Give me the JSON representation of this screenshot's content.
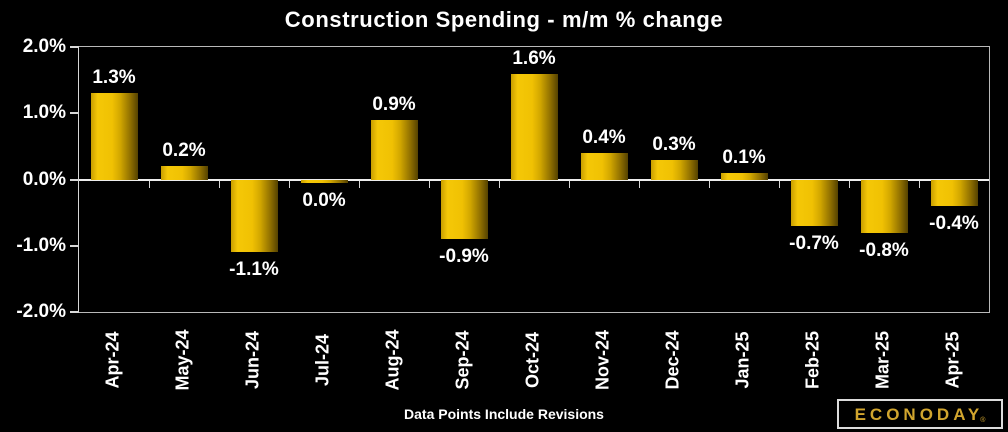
{
  "title": "Construction Spending - m/m % change",
  "footnote": "Data Points Include Revisions",
  "logo": {
    "brand": "ECONODAY",
    "registered_mark": "®"
  },
  "colors": {
    "background": "#000000",
    "text": "#ffffff",
    "axis_border": "#b9b9b9",
    "zero_line": "#ededed",
    "tick": "#d9d9d9",
    "bar_gold_bright": "#f0c103",
    "bar_gold_dark": "#554200",
    "logo_gold": "#d1a52e"
  },
  "chart_data": {
    "type": "bar",
    "title": "Construction Spending - m/m % change",
    "categories": [
      "Apr-24",
      "May-24",
      "Jun-24",
      "Jul-24",
      "Aug-24",
      "Sep-24",
      "Oct-24",
      "Nov-24",
      "Dec-24",
      "Jan-25",
      "Feb-25",
      "Mar-25",
      "Apr-25"
    ],
    "values": [
      1.3,
      0.2,
      -1.1,
      0.0,
      0.9,
      -0.9,
      1.6,
      0.4,
      0.3,
      0.1,
      -0.7,
      -0.8,
      -0.4
    ],
    "data_labels": [
      "1.3%",
      "0.2%",
      "-1.1%",
      "0.0%",
      "0.9%",
      "-0.9%",
      "1.6%",
      "0.4%",
      "0.3%",
      "0.1%",
      "-0.7%",
      "-0.8%",
      "-0.4%"
    ],
    "xlabel": "",
    "ylabel": "",
    "ylim": [
      -2.0,
      2.0
    ],
    "yticks": [
      {
        "value": 2.0,
        "label": "2.0%"
      },
      {
        "value": 1.0,
        "label": "1.0%"
      },
      {
        "value": 0.0,
        "label": "0.0%"
      },
      {
        "value": -1.0,
        "label": "-1.0%"
      },
      {
        "value": -2.0,
        "label": "-2.0%"
      }
    ],
    "grid": false,
    "legend": "none",
    "x_tick_style": "boundary ticks below zero line",
    "x_label_rotation": 90
  }
}
